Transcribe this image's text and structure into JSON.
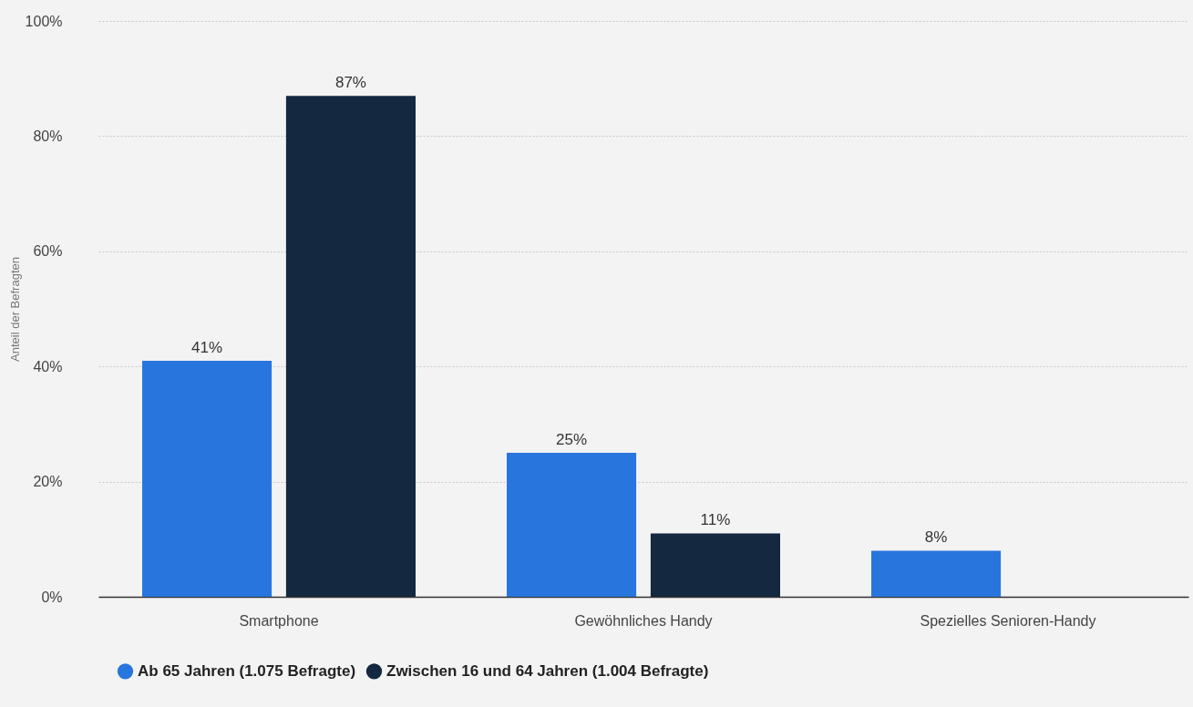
{
  "chart_data": {
    "type": "bar",
    "ylabel": "Anteil der Befragten",
    "categories": [
      "Smartphone",
      "Gewöhnliches Handy",
      "Spezielles Senioren-Handy"
    ],
    "series": [
      {
        "name": "Ab 65 Jahren (1.075 Befragte)",
        "color": "#2876dd",
        "values": [
          41,
          25,
          8
        ],
        "value_labels": [
          "41%",
          "25%",
          "8%"
        ]
      },
      {
        "name": "Zwischen 16 und 64 Jahren (1.004 Befragte)",
        "color": "#14283f",
        "values": [
          87,
          11,
          null
        ],
        "value_labels": [
          "87%",
          "11%",
          null
        ]
      }
    ],
    "ylim": [
      0,
      100
    ],
    "yticks": [
      {
        "value": 0,
        "label": "0%"
      },
      {
        "value": 20,
        "label": "20%"
      },
      {
        "value": 40,
        "label": "40%"
      },
      {
        "value": 60,
        "label": "60%"
      },
      {
        "value": 80,
        "label": "80%"
      },
      {
        "value": 100,
        "label": "100%"
      }
    ],
    "grid": "y",
    "legend": "bottom"
  }
}
